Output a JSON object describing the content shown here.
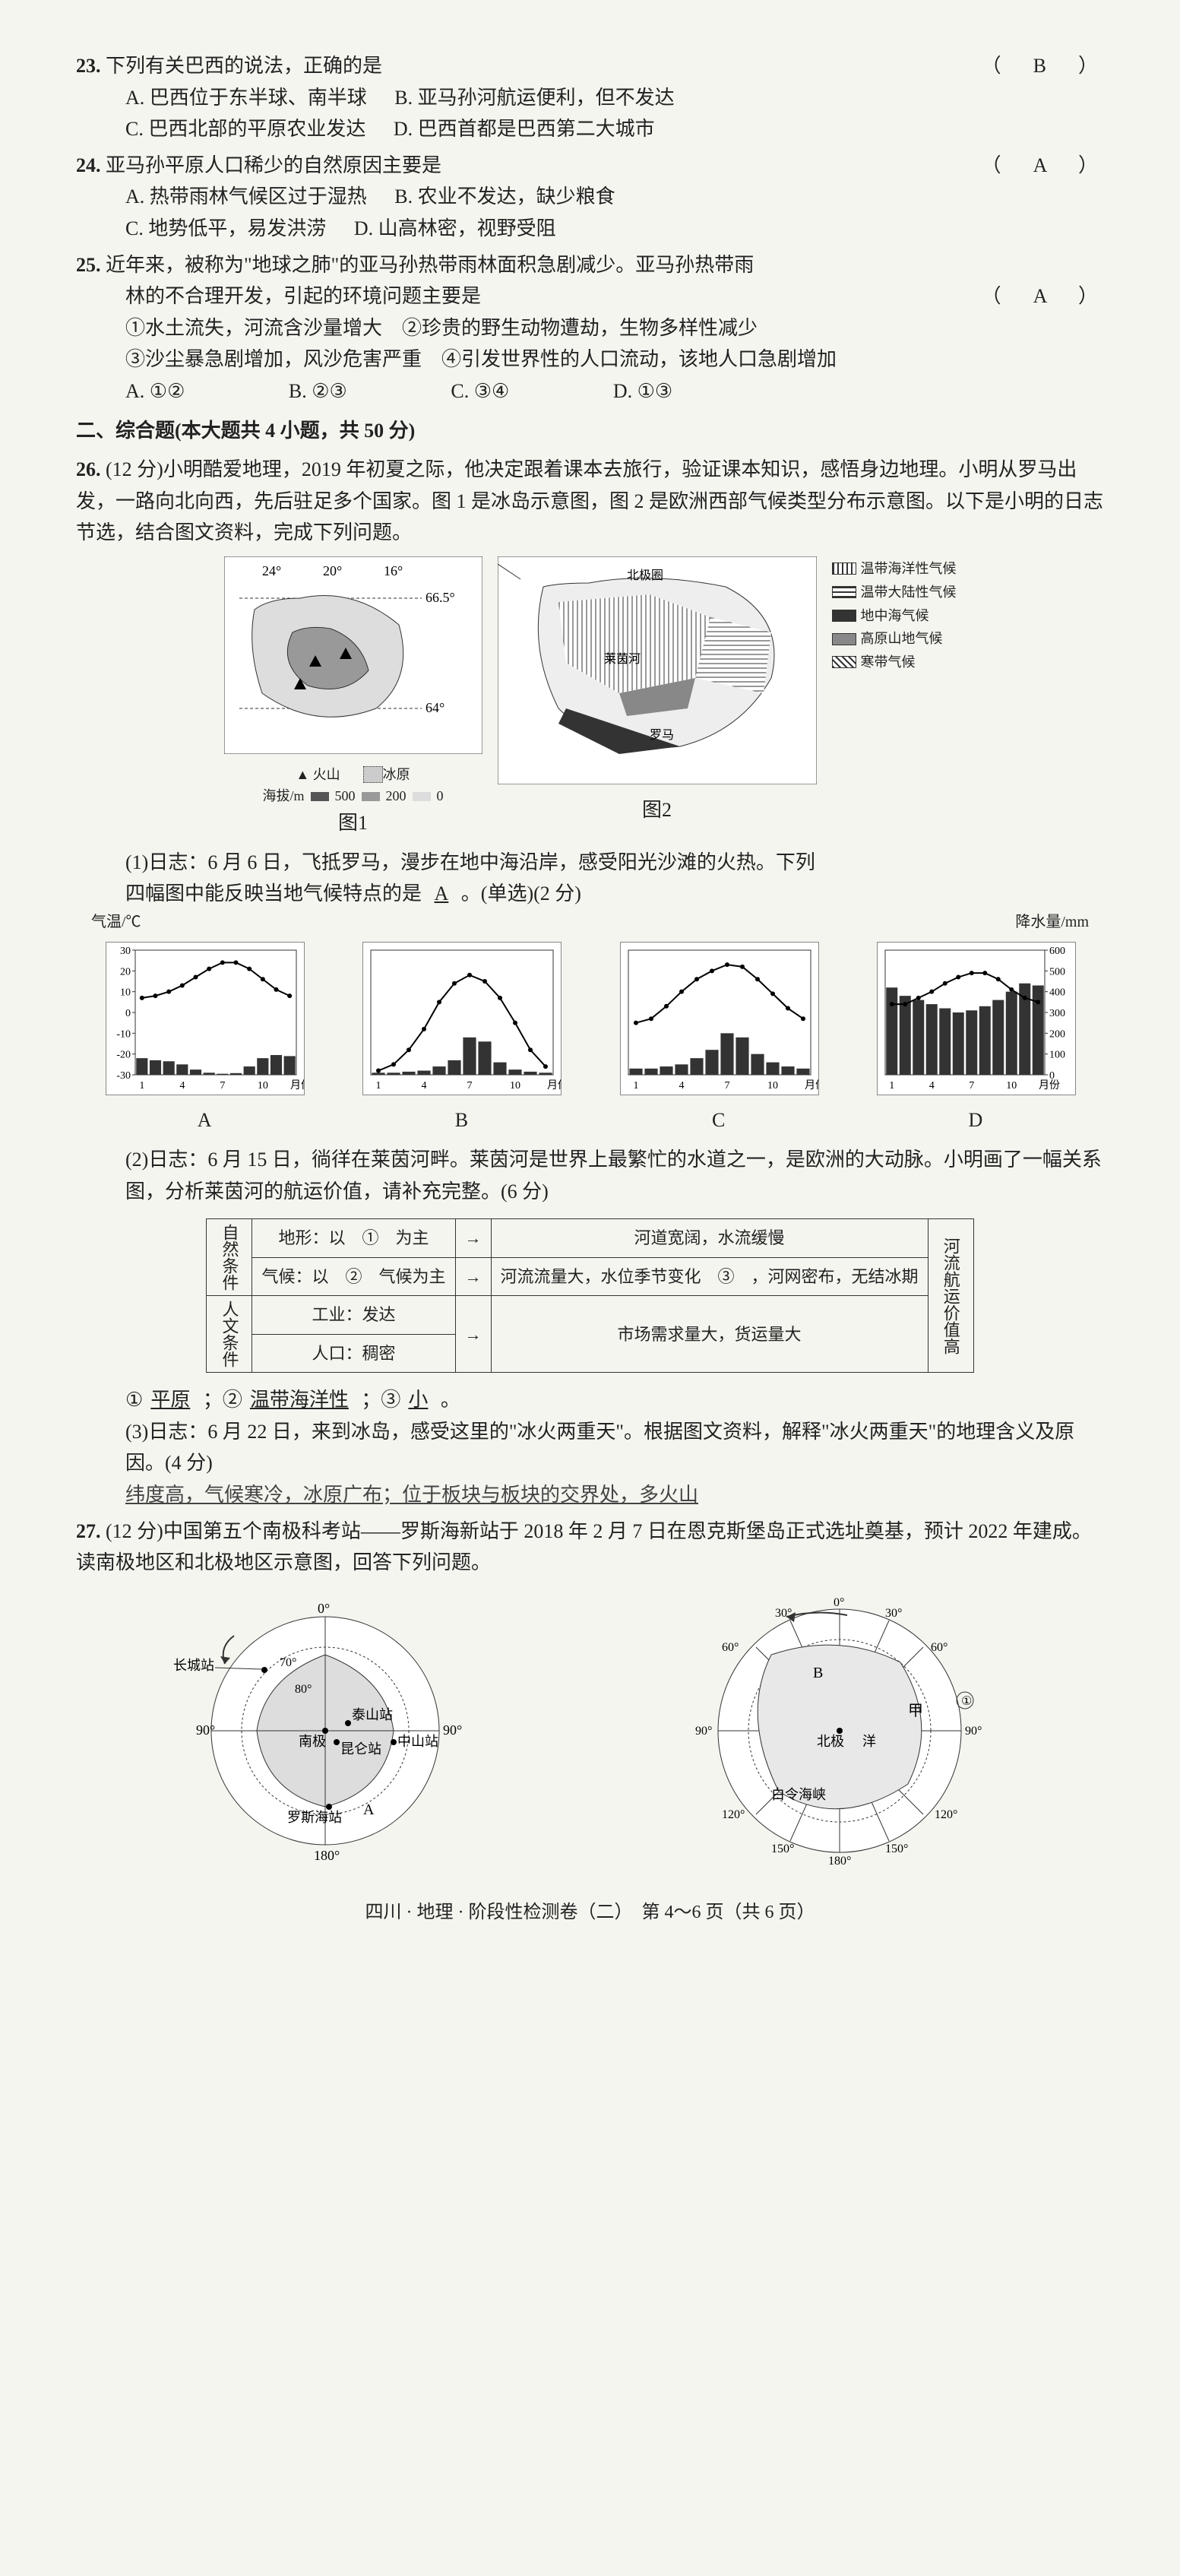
{
  "q23": {
    "num": "23.",
    "stem": "下列有关巴西的说法，正确的是",
    "ans": "（　B　）",
    "A": "A. 巴西位于东半球、南半球",
    "B": "B. 亚马孙河航运便利，但不发达",
    "C": "C. 巴西北部的平原农业发达",
    "D": "D. 巴西首都是巴西第二大城市"
  },
  "q24": {
    "num": "24.",
    "stem": "亚马孙平原人口稀少的自然原因主要是",
    "ans": "（　A　）",
    "A": "A. 热带雨林气候区过于湿热",
    "B": "B. 农业不发达，缺少粮食",
    "C": "C. 地势低平，易发洪涝",
    "D": "D. 山高林密，视野受阻"
  },
  "q25": {
    "num": "25.",
    "stem1": "近年来，被称为\"地球之肺\"的亚马孙热带雨林面积急剧减少。亚马孙热带雨",
    "stem2": "林的不合理开发，引起的环境问题主要是",
    "ans": "（　A　）",
    "l1": "①水土流失，河流含沙量增大　②珍贵的野生动物遭劫，生物多样性减少",
    "l2": "③沙尘暴急剧增加，风沙危害严重　④引发世界性的人口流动，该地人口急剧增加",
    "A": "A. ①②",
    "B": "B. ②③",
    "C": "C. ③④",
    "D": "D. ①③"
  },
  "section2": "二、综合题(本大题共 4 小题，共 50 分)",
  "q26": {
    "num": "26.",
    "stem": "(12 分)小明酷爱地理，2019 年初夏之际，他决定跟着课本去旅行，验证课本知识，感悟身边地理。小明从罗马出发，一路向北向西，先后驻足多个国家。图 1 是冰岛示意图，图 2 是欧洲西部气候类型分布示意图。以下是小明的日志节选，结合图文资料，完成下列问题。",
    "fig1": "图1",
    "fig2": "图2",
    "icelandLon": [
      "24°",
      "20°",
      "16°"
    ],
    "icelandLat1": "66.5°",
    "icelandLat2": "64°",
    "legendVolcano": "火山",
    "legendIce": "冰原",
    "legendAlt": "海拔/m",
    "alt500": "500",
    "alt200": "200",
    "alt0": "0",
    "euLegend": [
      "温带海洋性气候",
      "温带大陆性气候",
      "地中海气候",
      "高原山地气候",
      "寒带气候"
    ],
    "euLabel1": "北极圈",
    "euLabel2": "莱茵河",
    "euLabel3": "罗马",
    "sub1a": "(1)日志：6 月 6 日，飞抵罗马，漫步在地中海沿岸，感受阳光沙滩的火热。下列",
    "sub1b": "四幅图中能反映当地气候特点的是",
    "sub1ans": "A",
    "sub1c": "。(单选)(2 分)",
    "axisTemp": "气温/℃",
    "axisPrec": "降水量/mm",
    "tempTicks": [
      "30",
      "20",
      "10",
      "0",
      "-10",
      "-20",
      "-30"
    ],
    "precTicks": [
      "600",
      "500",
      "400",
      "300",
      "200",
      "100",
      "0"
    ],
    "monthTicks": [
      "1",
      "4",
      "7",
      "10",
      "月份"
    ],
    "chartLabels": [
      "A",
      "B",
      "C",
      "D"
    ],
    "chartA": {
      "temp": [
        7,
        8,
        10,
        13,
        17,
        21,
        24,
        24,
        21,
        16,
        11,
        8
      ],
      "prec": [
        80,
        70,
        65,
        50,
        25,
        10,
        5,
        8,
        40,
        80,
        95,
        90
      ]
    },
    "chartB": {
      "temp": [
        -28,
        -25,
        -18,
        -8,
        5,
        14,
        18,
        15,
        7,
        -5,
        -18,
        -26
      ],
      "prec": [
        10,
        10,
        15,
        20,
        40,
        70,
        180,
        160,
        60,
        25,
        15,
        10
      ]
    },
    "chartC": {
      "temp": [
        -5,
        -3,
        3,
        10,
        16,
        20,
        23,
        22,
        16,
        9,
        2,
        -3
      ],
      "prec": [
        30,
        30,
        40,
        50,
        80,
        120,
        200,
        180,
        100,
        60,
        40,
        30
      ]
    },
    "chartD": {
      "temp": [
        4,
        4,
        7,
        10,
        14,
        17,
        19,
        19,
        16,
        11,
        7,
        5
      ],
      "prec": [
        420,
        380,
        360,
        340,
        320,
        300,
        310,
        330,
        360,
        400,
        440,
        430
      ]
    },
    "sub2": "(2)日志：6 月 15 日，徜徉在莱茵河畔。莱茵河是世界上最繁忙的水道之一，是欧洲的大动脉。小明画了一幅关系图，分析莱茵河的航运价值，请补充完整。(6 分)",
    "diag": {
      "natCond": "自然条件",
      "humCond": "人文条件",
      "terrain": "地形：以　①　为主",
      "terrainR": "河道宽阔，水流缓慢",
      "climate": "气候：以　②　气候为主",
      "climateR": "河流流量大，水位季节变化　③　，河网密布，无结冰期",
      "ind": "工业：发达",
      "pop": "人口：稠密",
      "market": "市场需求量大，货运量大",
      "right": "河流航运价值高"
    },
    "fill": {
      "pre": "①",
      "a1": "平原",
      "sep1": "；②",
      "a2": "温带海洋性",
      "sep2": "；③",
      "a3": "小",
      "end": "。"
    },
    "sub3": "(3)日志：6 月 22 日，来到冰岛，感受这里的\"冰火两重天\"。根据图文资料，解释\"冰火两重天\"的地理含义及原因。(4 分)",
    "sub3ans": "纬度高，气候寒冷，冰原广布；位于板块与板块的交界处，多火山"
  },
  "q27": {
    "num": "27.",
    "stem": "(12 分)中国第五个南极科考站——罗斯海新站于 2018 年 2 月 7 日在恩克斯堡岛正式选址奠基，预计 2022 年建成。读南极地区和北极地区示意图，回答下列问题。",
    "southLabels": {
      "cc": "长城站",
      "ts": "泰山站",
      "np": "南极",
      "kl": "昆仑站",
      "zs": "中山站",
      "ls": "罗斯海站",
      "a": "A"
    },
    "southDeg": [
      "0°",
      "90°",
      "90°",
      "180°",
      "70°",
      "80°"
    ],
    "northLabels": {
      "b": "B",
      "np": "北极",
      "jia": "甲",
      "yang": "洋",
      "bl": "白令海峡",
      "one": "①"
    },
    "northDeg": [
      "0°",
      "30°",
      "60°",
      "90°",
      "120°",
      "150°",
      "180°",
      "150°",
      "120°",
      "90°",
      "60°",
      "30°"
    ]
  },
  "footer": "四川 · 地理 · 阶段性检测卷（二）　第 4～6 页（共 6 页）"
}
